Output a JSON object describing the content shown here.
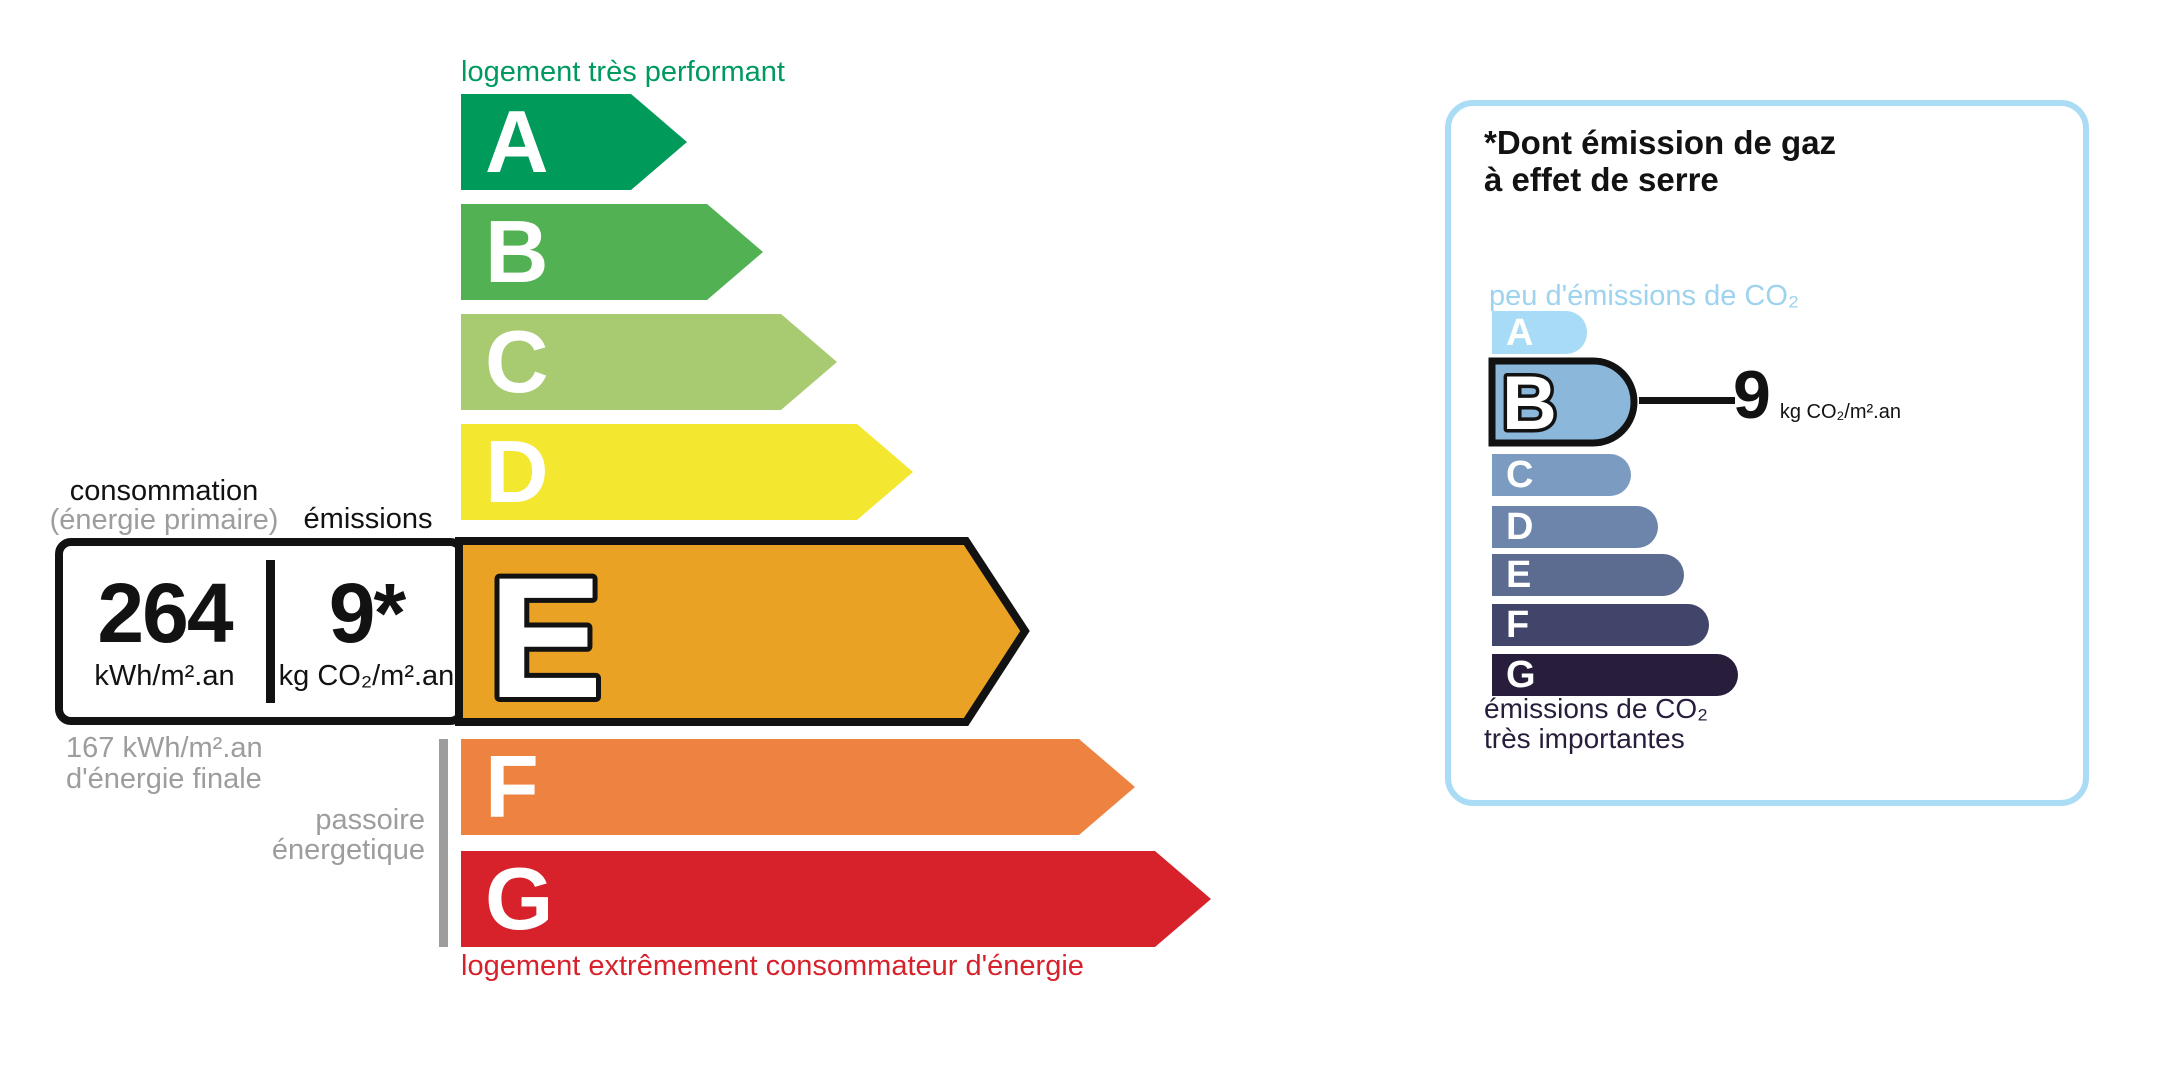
{
  "left_chart": {
    "top_label": "logement très performant",
    "bottom_label": "logement extrêmement consommateur d'énergie",
    "consumption_header": "consommation",
    "consumption_subheader": "(énergie primaire)",
    "emissions_header": "émissions",
    "consumption_value": "264",
    "consumption_unit": "kWh/m².an",
    "emissions_value": "9*",
    "emissions_unit": "kg CO₂/m².an",
    "final_energy_line1": "167 kWh/m².an",
    "final_energy_line2": "d'énergie finale",
    "sieve_line1": "passoire",
    "sieve_line2": "énergetique",
    "grades": [
      {
        "letter": "A",
        "color": "#009a5b"
      },
      {
        "letter": "B",
        "color": "#52b152"
      },
      {
        "letter": "C",
        "color": "#a8ca71"
      },
      {
        "letter": "D",
        "color": "#f3e72f"
      },
      {
        "letter": "E",
        "color": "#e9a224"
      },
      {
        "letter": "F",
        "color": "#ee8341"
      },
      {
        "letter": "G",
        "color": "#d7212b"
      }
    ],
    "selected_grade": "E"
  },
  "co2_panel": {
    "title_line1": "*Dont émission de gaz",
    "title_line2": "à effet de serre",
    "low_label": "peu d'émissions de CO₂",
    "high_label_line1": "émissions de CO₂",
    "high_label_line2": "très importantes",
    "value": "9",
    "value_unit": "kg CO₂/m².an",
    "grades": [
      {
        "letter": "A",
        "color": "#a8dcf6"
      },
      {
        "letter": "B",
        "color": "#8bb7da"
      },
      {
        "letter": "C",
        "color": "#7b9cc0"
      },
      {
        "letter": "D",
        "color": "#6d84ab"
      },
      {
        "letter": "E",
        "color": "#5c6b90"
      },
      {
        "letter": "F",
        "color": "#42456a"
      },
      {
        "letter": "G",
        "color": "#281e3c"
      }
    ],
    "selected_grade": "B"
  },
  "colors": {
    "accent_green": "#009a5f",
    "accent_red": "#d7212b",
    "gray": "#9d9d9c",
    "dark_navy": "#281e3c",
    "light_blue_text": "#9dd3ef",
    "panel_border": "#aadcf5"
  },
  "chart_data": {
    "type": "bar",
    "title": "Diagnostic de performance énergétique (DPE)",
    "energy_scale_categories": [
      "A",
      "B",
      "C",
      "D",
      "E",
      "F",
      "G"
    ],
    "selected_energy_class": "E",
    "primary_energy_consumption_kwh_m2_an": 264,
    "final_energy_consumption_kwh_m2_an": 167,
    "ghg_emissions_kg_co2_m2_an": 9,
    "co2_scale_categories": [
      "A",
      "B",
      "C",
      "D",
      "E",
      "F",
      "G"
    ],
    "selected_co2_class": "B",
    "annotations": [
      "logement très performant",
      "logement extrêmement consommateur d'énergie",
      "passoire énergetique",
      "peu d'émissions de CO₂",
      "émissions de CO₂ très importantes"
    ]
  }
}
